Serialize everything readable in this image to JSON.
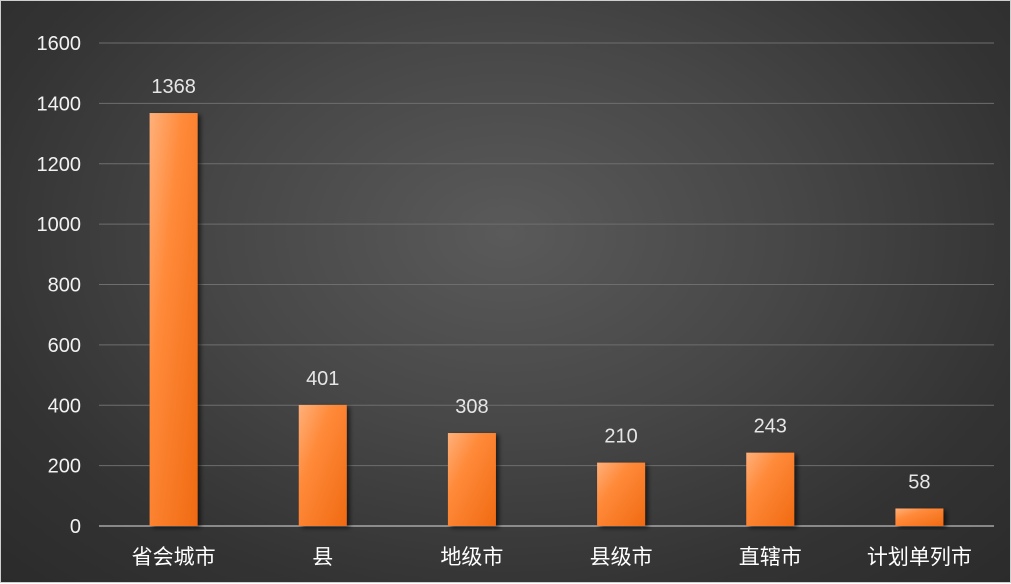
{
  "chart_data": {
    "type": "bar",
    "title": "",
    "xlabel": "",
    "ylabel": "",
    "categories": [
      "省会城市",
      "县",
      "地级市",
      "县级市",
      "直辖市",
      "计划单列市"
    ],
    "values": [
      1368,
      401,
      308,
      210,
      243,
      58
    ],
    "data_labels": [
      "1368",
      "401",
      "308",
      "210",
      "243",
      "58"
    ],
    "ylim": [
      0,
      1600
    ],
    "yticks": [
      0,
      200,
      400,
      600,
      800,
      1000,
      1200,
      1400,
      1600
    ],
    "grid": true,
    "legend": "none",
    "colors": {
      "bar_light": "#ffb07a",
      "bar_mid": "#ff7f2a",
      "bar_dark": "#f06a12",
      "background_center": "#5a5a5a",
      "background_edge": "#2b2b2b",
      "gridline": "#6e6e6e",
      "text": "#f2f2f2"
    }
  }
}
